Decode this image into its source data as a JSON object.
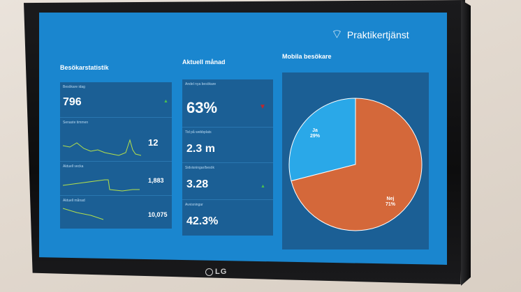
{
  "brand": {
    "name": "Praktikertjänst"
  },
  "tv_logo": "LG",
  "sections": {
    "visitor_stats": "Besökarstatistik",
    "current_month": "Aktuell månad",
    "mobile_visitors": "Mobila besökare"
  },
  "visitor_stats": [
    {
      "label": "Besökare idag",
      "value": "796"
    },
    {
      "label": "Senaste timmen",
      "value": "12"
    },
    {
      "label": "Aktuell vecka",
      "value": "1,883"
    },
    {
      "label": "Aktuell månad",
      "value": "10,075"
    }
  ],
  "current_month": [
    {
      "label": "Andel nya besökare",
      "value": "63%"
    },
    {
      "label": "Tid på webbplats",
      "value": "2.3 m"
    },
    {
      "label": "Sidvisningar/besök",
      "value": "3.28"
    },
    {
      "label": "Avvisningar",
      "value": "42.3%"
    }
  ],
  "chart_data": {
    "type": "pie",
    "title": "Mobila besökare",
    "labels": [
      "Ja",
      "Nej"
    ],
    "values": [
      29,
      71
    ],
    "value_labels": [
      "29%",
      "71%"
    ],
    "colors": [
      "#2aa8e8",
      "#d4683a"
    ]
  },
  "colors": {
    "screen_bg": "#1a86cf",
    "panel_bg": "#1b5f95",
    "up": "#4cc24c",
    "down": "#c0262c"
  }
}
